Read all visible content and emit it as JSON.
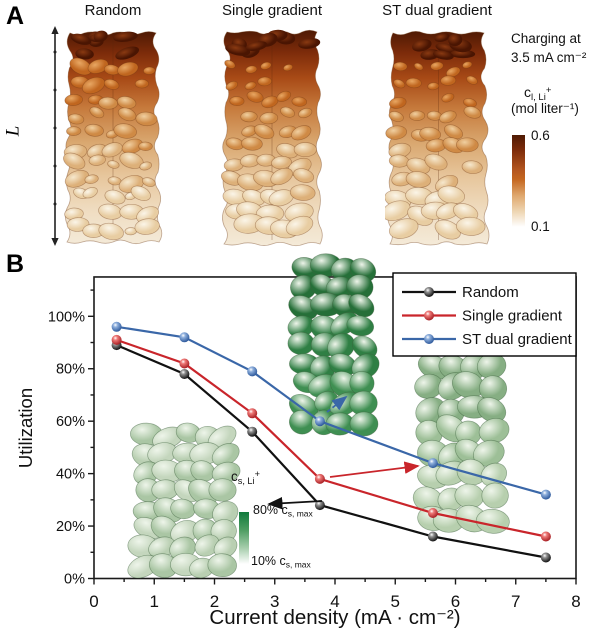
{
  "panelA": {
    "label": "A",
    "columns": [
      "Random",
      "Single gradient",
      "ST dual gradient"
    ],
    "length_label": "L",
    "charging_text": [
      "Charging at",
      "3.5 mA cm⁻²"
    ],
    "colorbar": {
      "title_segments": [
        {
          "t": "c"
        },
        {
          "t": "l, Li",
          "s": "sub"
        },
        {
          "t": "+",
          "s": "sup"
        }
      ],
      "unit": "(mol liter⁻¹)",
      "max": "0.6",
      "min": "0.1",
      "color_top": "#4f1a04",
      "color_mid": "#c4661f",
      "color_bottom": "#ffffff"
    }
  },
  "panelB": {
    "label": "B"
  },
  "chart_data": {
    "type": "line",
    "title": "",
    "xlabel": "Current density (mA · cm⁻²)",
    "ylabel": "Utilization",
    "xlim": [
      0,
      8
    ],
    "ylim_pct": [
      0,
      115
    ],
    "grid": false,
    "legend_position": "top-right",
    "x_ticks": [
      "0",
      "1",
      "2",
      "3",
      "4",
      "5",
      "6",
      "7",
      "8"
    ],
    "y_tick_labels": [
      "0%",
      "20%",
      "40%",
      "60%",
      "80%",
      "100%"
    ],
    "x": [
      0.375,
      1.5,
      2.625,
      3.75,
      5.625,
      7.5
    ],
    "series": [
      {
        "name": "Random",
        "color": "#111111",
        "light": "#909090",
        "dark": "#000000",
        "values": [
          89,
          78,
          56,
          28,
          16,
          8
        ]
      },
      {
        "name": "Single gradient",
        "color": "#c9252b",
        "light": "#ef7a78",
        "dark": "#9d1218",
        "values": [
          91,
          82,
          63,
          38,
          25,
          16
        ]
      },
      {
        "name": "ST dual gradient",
        "color": "#3a67a8",
        "light": "#8fb0dd",
        "dark": "#1f4c92",
        "values": [
          96,
          92,
          79,
          60,
          44,
          32
        ]
      }
    ]
  },
  "insetColorbar": {
    "title_segments": [
      {
        "t": "c"
      },
      {
        "t": "s, Li",
        "s": "sub"
      },
      {
        "t": "+",
        "s": "sup"
      }
    ],
    "top_label_segments": [
      {
        "t": "80% c"
      },
      {
        "t": "s, max",
        "s": "sub"
      }
    ],
    "bottom_label_segments": [
      {
        "t": "10% c"
      },
      {
        "t": "s, max",
        "s": "sub"
      }
    ],
    "color_top": "#107a3c",
    "color_bottom": "#ffffff"
  }
}
